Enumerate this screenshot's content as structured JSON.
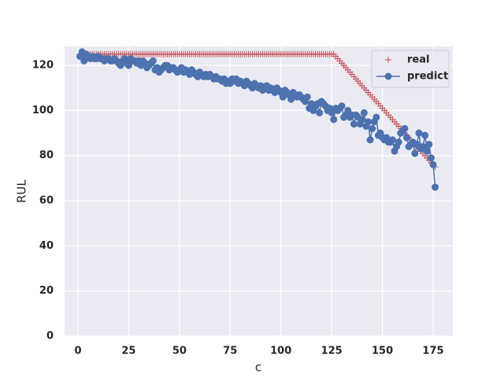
{
  "chart_data": {
    "type": "line",
    "xlabel": "c",
    "ylabel": "RUL",
    "x": [
      1,
      2,
      3,
      4,
      5,
      6,
      7,
      8,
      9,
      10,
      11,
      12,
      13,
      14,
      15,
      16,
      17,
      18,
      19,
      20,
      21,
      22,
      23,
      24,
      25,
      26,
      27,
      28,
      29,
      30,
      31,
      32,
      33,
      34,
      35,
      36,
      37,
      38,
      39,
      40,
      41,
      42,
      43,
      44,
      45,
      46,
      47,
      48,
      49,
      50,
      51,
      52,
      53,
      54,
      55,
      56,
      57,
      58,
      59,
      60,
      61,
      62,
      63,
      64,
      65,
      66,
      67,
      68,
      69,
      70,
      71,
      72,
      73,
      74,
      75,
      76,
      77,
      78,
      79,
      80,
      81,
      82,
      83,
      84,
      85,
      86,
      87,
      88,
      89,
      90,
      91,
      92,
      93,
      94,
      95,
      96,
      97,
      98,
      99,
      100,
      101,
      102,
      103,
      104,
      105,
      106,
      107,
      108,
      109,
      110,
      111,
      112,
      113,
      114,
      115,
      116,
      117,
      118,
      119,
      120,
      121,
      122,
      123,
      124,
      125,
      126,
      127,
      128,
      129,
      130,
      131,
      132,
      133,
      134,
      135,
      136,
      137,
      138,
      139,
      140,
      141,
      142,
      143,
      144,
      145,
      146,
      147,
      148,
      149,
      150,
      151,
      152,
      153,
      154,
      155,
      156,
      157,
      158,
      159,
      160,
      161,
      162,
      163,
      164,
      165,
      166,
      167,
      168,
      169,
      170,
      171,
      172,
      173,
      174,
      175,
      176
    ],
    "series": [
      {
        "name": "real",
        "color": "#c44e52",
        "marker": "+",
        "linestyle": "none",
        "values": [
          125,
          125,
          125,
          125,
          125,
          125,
          125,
          125,
          125,
          125,
          125,
          125,
          125,
          125,
          125,
          125,
          125,
          125,
          125,
          125,
          125,
          125,
          125,
          125,
          125,
          125,
          125,
          125,
          125,
          125,
          125,
          125,
          125,
          125,
          125,
          125,
          125,
          125,
          125,
          125,
          125,
          125,
          125,
          125,
          125,
          125,
          125,
          125,
          125,
          125,
          125,
          125,
          125,
          125,
          125,
          125,
          125,
          125,
          125,
          125,
          125,
          125,
          125,
          125,
          125,
          125,
          125,
          125,
          125,
          125,
          125,
          125,
          125,
          125,
          125,
          125,
          125,
          125,
          125,
          125,
          125,
          125,
          125,
          125,
          125,
          125,
          125,
          125,
          125,
          125,
          125,
          125,
          125,
          125,
          125,
          125,
          125,
          125,
          125,
          125,
          125,
          125,
          125,
          125,
          125,
          125,
          125,
          125,
          125,
          125,
          125,
          125,
          125,
          125,
          125,
          125,
          125,
          125,
          125,
          125,
          125,
          125,
          125,
          125,
          125,
          125,
          124,
          123,
          122,
          121,
          120,
          119,
          118,
          117,
          116,
          115,
          114,
          113,
          112,
          111,
          110,
          109,
          108,
          107,
          106,
          105,
          104,
          103,
          102,
          101,
          100,
          99,
          98,
          97,
          96,
          95,
          94,
          93,
          92,
          91,
          90,
          89,
          88,
          87,
          86,
          85,
          84,
          83,
          82,
          81,
          80,
          79,
          78,
          77,
          76,
          75
        ]
      },
      {
        "name": "predict",
        "color": "#4c72b0",
        "marker": "o",
        "linestyle": "-",
        "values": [
          124,
          126,
          122,
          125,
          124,
          123,
          124,
          123,
          123,
          124,
          123,
          123,
          122,
          123,
          123,
          122,
          122,
          123,
          122,
          121,
          120,
          122,
          123,
          121,
          120,
          123,
          122,
          122,
          121,
          122,
          120,
          122,
          121,
          119,
          120,
          121,
          122,
          118,
          119,
          117,
          118,
          119,
          120,
          120,
          118,
          119,
          119,
          118,
          117,
          118,
          119,
          117,
          118,
          117,
          116,
          118,
          117,
          116,
          115,
          117,
          116,
          115,
          116,
          115,
          116,
          115,
          114,
          115,
          114,
          114,
          113,
          114,
          112,
          113,
          112,
          114,
          113,
          114,
          112,
          113,
          112,
          111,
          113,
          112,
          111,
          110,
          112,
          111,
          110,
          111,
          109,
          110,
          111,
          109,
          110,
          109,
          108,
          110,
          109,
          108,
          106,
          109,
          108,
          107,
          105,
          108,
          107,
          106,
          107,
          106,
          105,
          104,
          106,
          101,
          103,
          100,
          102,
          103,
          99,
          104,
          103,
          102,
          100,
          101,
          99,
          96,
          101,
          100,
          101,
          102,
          97,
          98,
          100,
          97,
          98,
          94,
          98,
          97,
          94,
          96,
          99,
          93,
          95,
          87,
          92,
          95,
          97,
          89,
          90,
          88,
          87,
          88,
          86,
          86,
          87,
          82,
          84,
          86,
          90,
          91,
          92,
          88,
          84,
          85,
          86,
          81,
          85,
          90,
          83,
          84,
          89,
          82,
          85,
          79,
          76,
          66
        ]
      }
    ],
    "xlim": [
      -6.6,
      184.7
    ],
    "ylim": [
      0,
      128.4
    ],
    "xticks": [
      0,
      25,
      50,
      75,
      100,
      125,
      150,
      175
    ],
    "yticks": [
      0,
      20,
      40,
      60,
      80,
      100,
      120
    ],
    "grid": true,
    "legend": "upper right"
  }
}
